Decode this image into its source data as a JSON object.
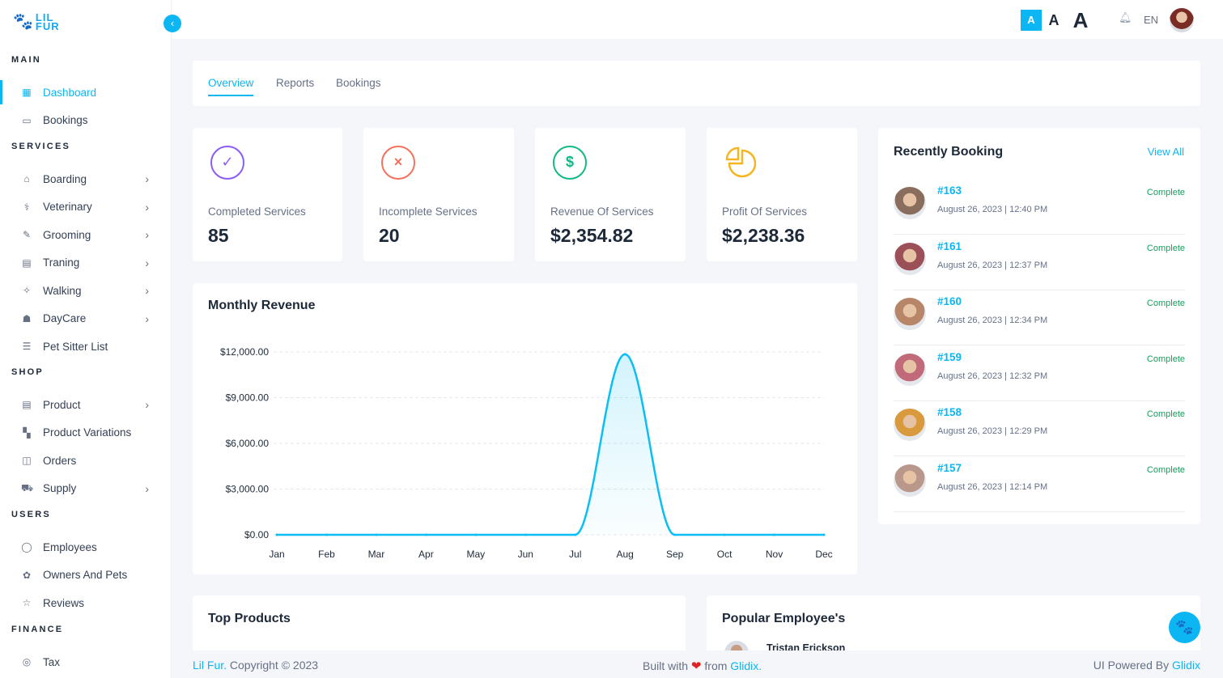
{
  "brand": {
    "line1": "LIL",
    "line2": "FUR"
  },
  "topbar": {
    "font_sizes": [
      "A",
      "A",
      "A"
    ],
    "language": "EN"
  },
  "sidebar": {
    "sections": [
      {
        "title": "MAIN",
        "items": [
          {
            "label": "Dashboard",
            "icon": "grid-icon",
            "active": true,
            "chevron": false
          },
          {
            "label": "Bookings",
            "icon": "calendar-icon",
            "chevron": false
          }
        ]
      },
      {
        "title": "SERVICES",
        "items": [
          {
            "label": "Boarding",
            "icon": "house-icon",
            "chevron": true
          },
          {
            "label": "Veterinary",
            "icon": "stethoscope-icon",
            "chevron": true
          },
          {
            "label": "Grooming",
            "icon": "brush-icon",
            "chevron": true
          },
          {
            "label": "Traning",
            "icon": "training-icon",
            "chevron": true
          },
          {
            "label": "Walking",
            "icon": "walking-dog-icon",
            "chevron": true
          },
          {
            "label": "DayCare",
            "icon": "daycare-icon",
            "chevron": true
          },
          {
            "label": "Pet Sitter List",
            "icon": "list-icon",
            "chevron": false
          }
        ]
      },
      {
        "title": "SHOP",
        "items": [
          {
            "label": "Product",
            "icon": "store-icon",
            "chevron": true
          },
          {
            "label": "Product Variations",
            "icon": "variations-icon",
            "chevron": false
          },
          {
            "label": "Orders",
            "icon": "bag-icon",
            "chevron": false
          },
          {
            "label": "Supply",
            "icon": "truck-icon",
            "chevron": true
          }
        ]
      },
      {
        "title": "USERS",
        "items": [
          {
            "label": "Employees",
            "icon": "user-icon",
            "chevron": false
          },
          {
            "label": "Owners And Pets",
            "icon": "paw-icon",
            "chevron": false
          },
          {
            "label": "Reviews",
            "icon": "star-icon",
            "chevron": false
          }
        ]
      },
      {
        "title": "FINANCE",
        "items": [
          {
            "label": "Tax",
            "icon": "tax-icon",
            "chevron": false
          }
        ]
      }
    ]
  },
  "tabs": [
    "Overview",
    "Reports",
    "Bookings"
  ],
  "stats": [
    {
      "label": "Completed Services",
      "value": "85",
      "icon": "check-circle-icon",
      "color": "#8b5cf6"
    },
    {
      "label": "Incomplete Services",
      "value": "20",
      "icon": "x-circle-icon",
      "color": "#f2735c"
    },
    {
      "label": "Revenue Of Services",
      "value": "$2,354.82",
      "icon": "dollar-circle-icon",
      "color": "#12b886"
    },
    {
      "label": "Profit Of Services",
      "value": "$2,238.36",
      "icon": "pie-icon",
      "color": "#f5b521"
    }
  ],
  "recent": {
    "title": "Recently Booking",
    "view_all": "View All",
    "items": [
      {
        "id": "#163",
        "date": "August 26, 2023 | 12:40 PM",
        "status": "Complete"
      },
      {
        "id": "#161",
        "date": "August 26, 2023 | 12:37 PM",
        "status": "Complete"
      },
      {
        "id": "#160",
        "date": "August 26, 2023 | 12:34 PM",
        "status": "Complete"
      },
      {
        "id": "#159",
        "date": "August 26, 2023 | 12:32 PM",
        "status": "Complete"
      },
      {
        "id": "#158",
        "date": "August 26, 2023 | 12:29 PM",
        "status": "Complete"
      },
      {
        "id": "#157",
        "date": "August 26, 2023 | 12:14 PM",
        "status": "Complete"
      }
    ]
  },
  "monthly_revenue": {
    "title": "Monthly Revenue"
  },
  "chart_data": {
    "type": "area",
    "title": "Monthly Revenue",
    "categories": [
      "Jan",
      "Feb",
      "Mar",
      "Apr",
      "May",
      "Jun",
      "Jul",
      "Aug",
      "Sep",
      "Oct",
      "Nov",
      "Dec"
    ],
    "series": [
      {
        "values": [
          0,
          0,
          0,
          0,
          0,
          0,
          0,
          11850,
          0,
          0,
          0,
          0
        ]
      }
    ],
    "yticks": [
      "$0.00",
      "$3,000.00",
      "$6,000.00",
      "$9,000.00",
      "$12,000.00"
    ],
    "ylim": [
      0,
      12000
    ],
    "grid": true,
    "color": "#0bbef3"
  },
  "top_products": {
    "title": "Top Products"
  },
  "popular_employees": {
    "title": "Popular Employee's",
    "first_name": "Tristan Erickson"
  },
  "footer": {
    "brand": "Lil Fur.",
    "copyright": "Copyright © 2023",
    "built_with": "Built with",
    "from": "from",
    "glidix": "Glidix.",
    "powered": "UI Powered By",
    "glidix2": "Glidix"
  }
}
